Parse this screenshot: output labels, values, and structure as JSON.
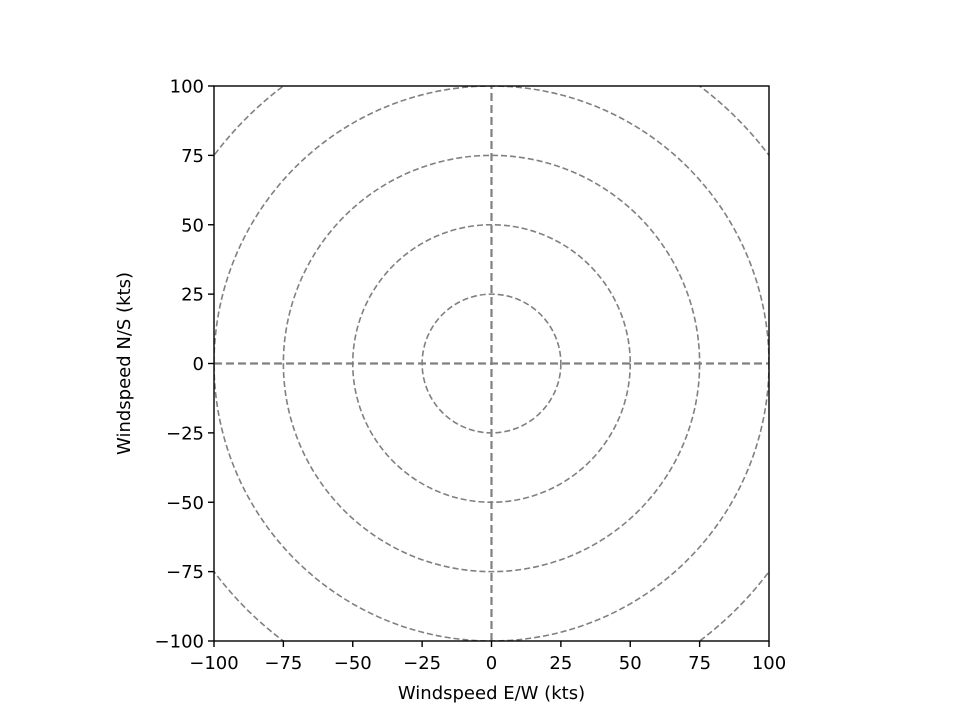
{
  "chart_data": {
    "type": "hodograph",
    "xlabel": "Windspeed E/W (kts)",
    "ylabel": "Windspeed N/S (kts)",
    "xlim": [
      -100,
      100
    ],
    "ylim": [
      -100,
      100
    ],
    "xticks": [
      -100,
      -75,
      -50,
      -25,
      0,
      25,
      50,
      75,
      100
    ],
    "yticks": [
      -100,
      -75,
      -50,
      -25,
      0,
      25,
      50,
      75,
      100
    ],
    "xtick_labels": [
      "−100",
      "−75",
      "−50",
      "−25",
      "0",
      "25",
      "50",
      "75",
      "100"
    ],
    "ytick_labels": [
      "−100",
      "−75",
      "−50",
      "−25",
      "0",
      "25",
      "50",
      "75",
      "100"
    ],
    "rings": [
      25,
      50,
      75,
      100,
      125
    ],
    "crosshair": true,
    "ring_color": "#808080",
    "series": []
  }
}
